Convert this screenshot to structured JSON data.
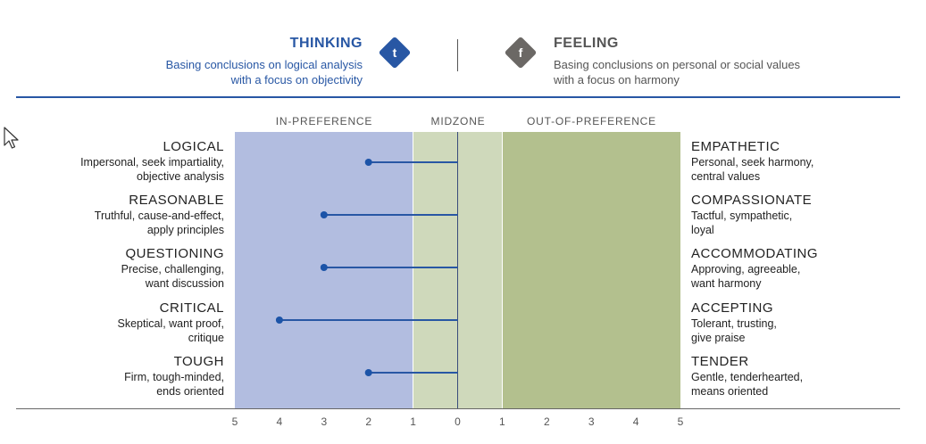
{
  "header": {
    "left": {
      "title": "THINKING",
      "line1": "Basing conclusions on logical analysis",
      "line2": "with a focus on objectivity",
      "badge": "t"
    },
    "right": {
      "title": "FEELING",
      "line1": "Basing conclusions on personal or social values",
      "line2": "with a focus on harmony",
      "badge": "f"
    }
  },
  "zones": {
    "in": "IN-PREFERENCE",
    "mid": "MIDZONE",
    "out": "OUT-OF-PREFERENCE"
  },
  "colors": {
    "in_preference": "#b2bde0",
    "midzone": "#cfd9bb",
    "out_of_preference": "#b3c08e",
    "accent": "#2857a4"
  },
  "icons": {
    "cursor": "arrow-cursor-icon"
  },
  "chart_data": {
    "type": "dot-range",
    "axis_ticks": [
      "5",
      "4",
      "3",
      "2",
      "1",
      "0",
      "1",
      "2",
      "3",
      "4",
      "5"
    ],
    "xlim": [
      -5,
      5
    ],
    "rows": [
      {
        "left_name": "LOGICAL",
        "left_desc1": "Impersonal, seek impartiality,",
        "left_desc2": "objective analysis",
        "right_name": "EMPATHETIC",
        "right_desc1": "Personal, seek harmony,",
        "right_desc2": "central values",
        "value": -2
      },
      {
        "left_name": "REASONABLE",
        "left_desc1": "Truthful, cause-and-effect,",
        "left_desc2": "apply principles",
        "right_name": "COMPASSIONATE",
        "right_desc1": "Tactful, sympathetic,",
        "right_desc2": "loyal",
        "value": -3
      },
      {
        "left_name": "QUESTIONING",
        "left_desc1": "Precise, challenging,",
        "left_desc2": "want discussion",
        "right_name": "ACCOMMODATING",
        "right_desc1": "Approving, agreeable,",
        "right_desc2": "want harmony",
        "value": -3
      },
      {
        "left_name": "CRITICAL",
        "left_desc1": "Skeptical, want proof,",
        "left_desc2": "critique",
        "right_name": "ACCEPTING",
        "right_desc1": "Tolerant, trusting,",
        "right_desc2": "give praise",
        "value": -4
      },
      {
        "left_name": "TOUGH",
        "left_desc1": "Firm, tough-minded,",
        "left_desc2": "ends oriented",
        "right_name": "TENDER",
        "right_desc1": "Gentle, tenderhearted,",
        "right_desc2": "means oriented",
        "value": -2
      }
    ]
  }
}
